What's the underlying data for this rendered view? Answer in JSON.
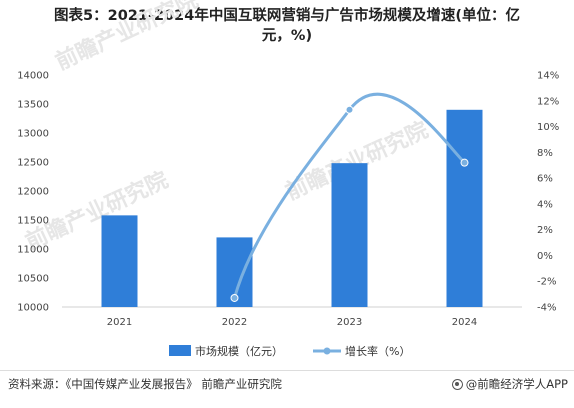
{
  "title": {
    "line1": "图表5：2021-2024年中国互联网营销与广告市场规模及增速(单位：亿",
    "line2": "元，%)"
  },
  "chart_data": {
    "type": "bar+line",
    "categories": [
      "2021",
      "2022",
      "2023",
      "2024"
    ],
    "series": [
      {
        "name": "市场规模（亿元）",
        "type": "bar",
        "axis": "left",
        "color": "#2f7ed8",
        "values": [
          11580,
          11200,
          12480,
          13400
        ]
      },
      {
        "name": "增长率（%）",
        "type": "line",
        "axis": "right",
        "color": "#7ab0e0",
        "values": [
          null,
          -3.3,
          11.3,
          7.2
        ]
      }
    ],
    "y_left": {
      "min": 10000,
      "max": 14000,
      "ticks": [
        "10000",
        "10500",
        "11000",
        "11500",
        "12000",
        "12500",
        "13000",
        "13500",
        "14000"
      ]
    },
    "y_right": {
      "min": -4,
      "max": 14,
      "ticks": [
        "-4%",
        "-2%",
        "0%",
        "2%",
        "4%",
        "6%",
        "8%",
        "10%",
        "12%",
        "14%"
      ]
    },
    "grid": false,
    "legend_position": "bottom"
  },
  "watermark": {
    "text": "前瞻产业研究院"
  },
  "footer": {
    "source": "资料来源：《中国传媒产业发展报告》 前瞻产业研究院",
    "brand": "@前瞻经济学人APP"
  }
}
